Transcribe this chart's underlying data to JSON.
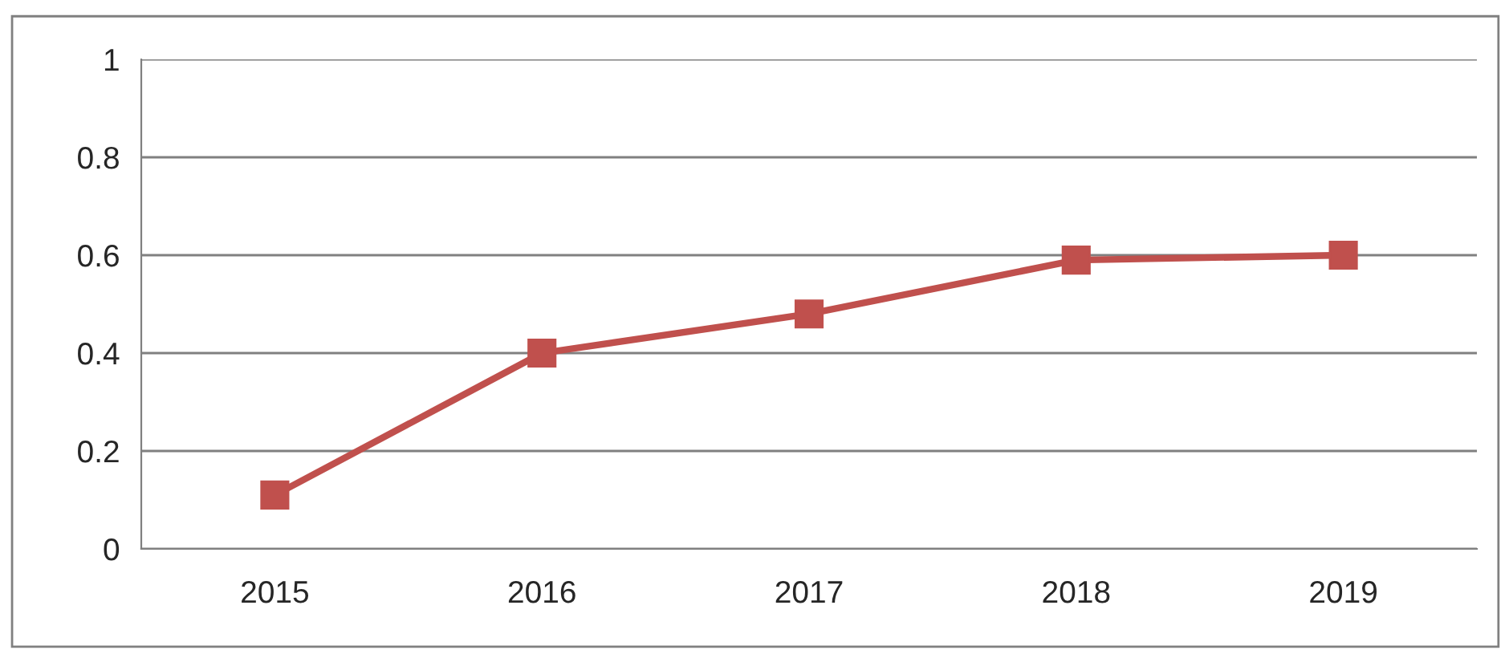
{
  "chart_data": {
    "type": "line",
    "categories": [
      "2015",
      "2016",
      "2017",
      "2018",
      "2019"
    ],
    "series": [
      {
        "color": "#c0504d",
        "values": [
          0.11,
          0.4,
          0.48,
          0.59,
          0.6
        ]
      }
    ],
    "ylim": [
      0,
      1
    ],
    "yticks": [
      0,
      0.2,
      0.4,
      0.6,
      0.8,
      1
    ],
    "grid": "y",
    "marker": "square",
    "line_style": "solid"
  }
}
